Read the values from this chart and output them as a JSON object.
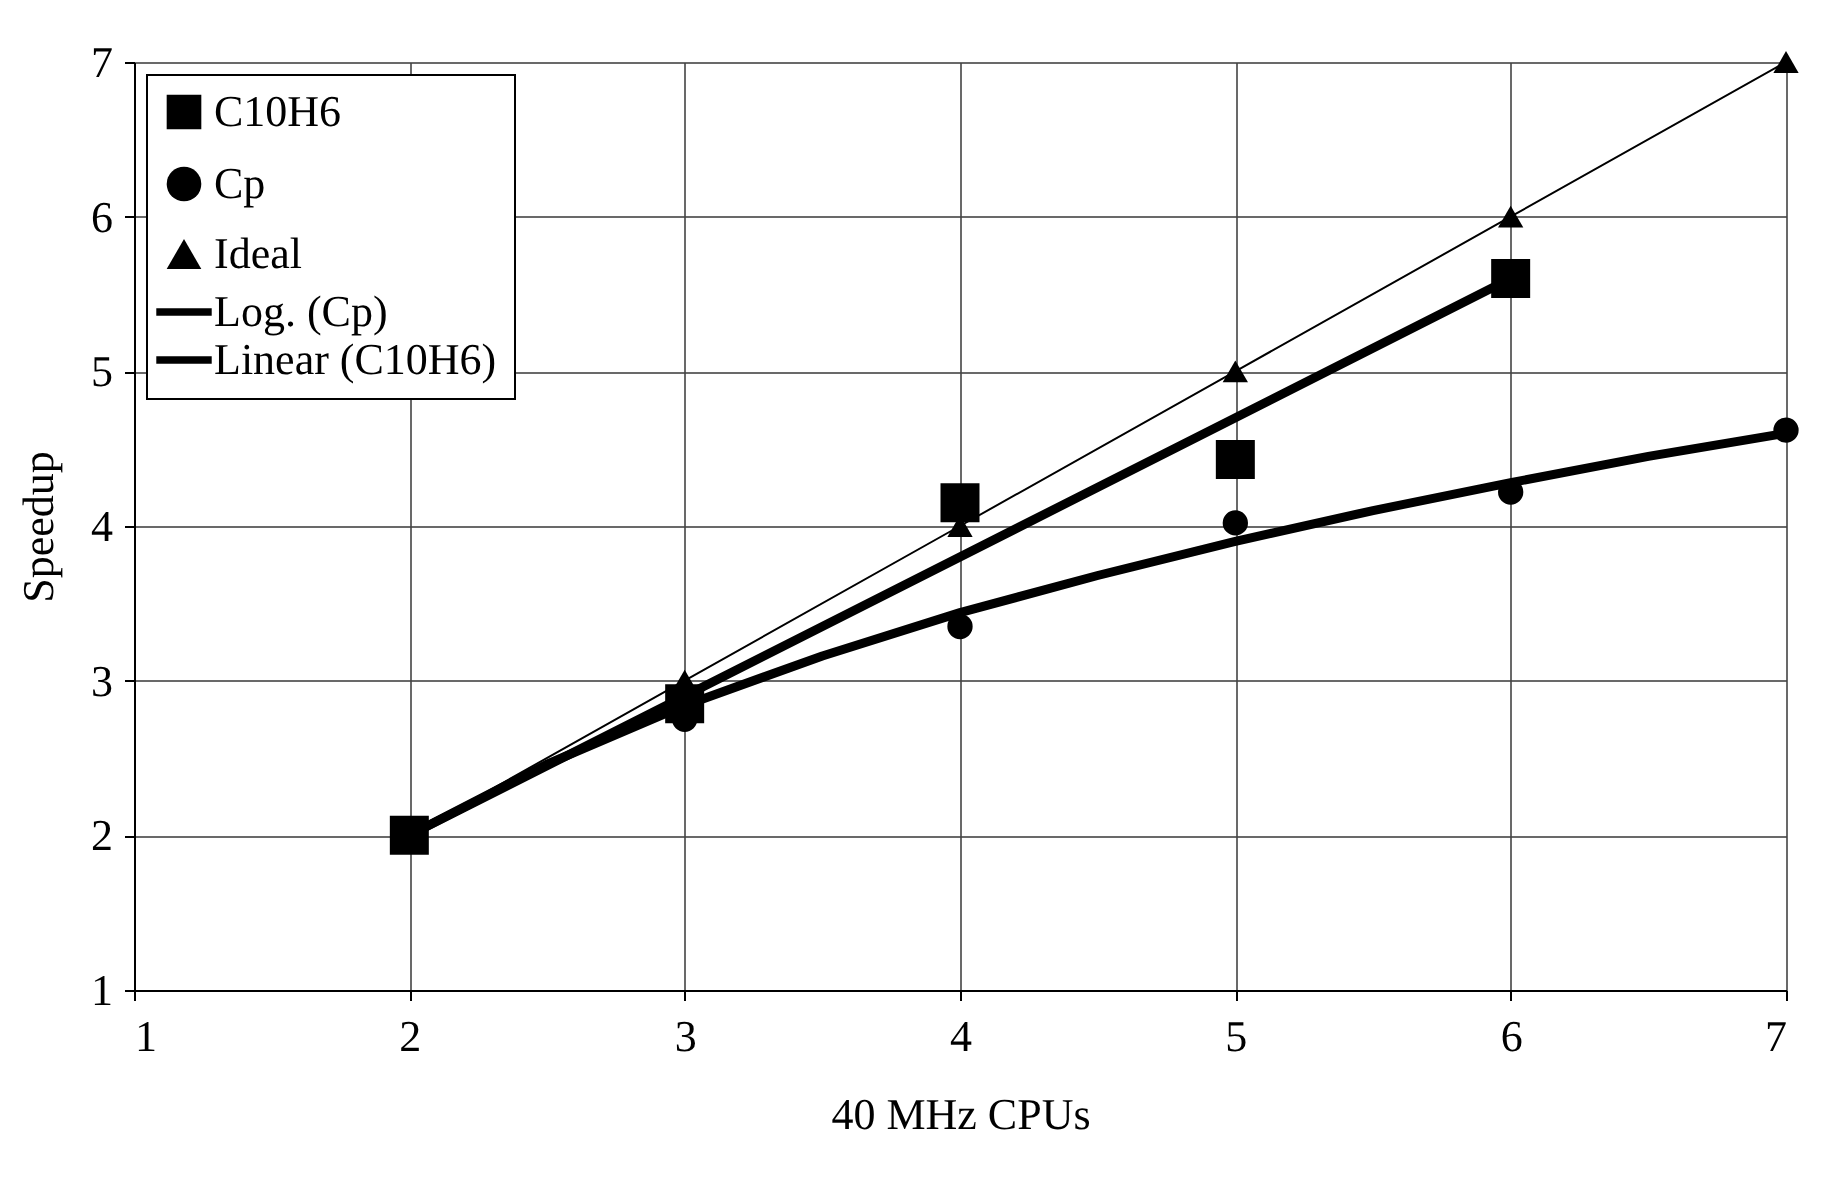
{
  "chart_data": {
    "type": "scatter",
    "xlabel": "40 MHz CPUs",
    "ylabel": "Speedup",
    "xlim": [
      1,
      7
    ],
    "xticks": [
      1,
      2,
      3,
      4,
      5,
      6,
      7
    ],
    "ylim": [
      1,
      7
    ],
    "yticks": [
      1,
      2,
      3,
      4,
      5,
      6,
      7
    ],
    "grid": true,
    "legend": "top left",
    "series": [
      {
        "name": "C10H6",
        "marker": "square",
        "color": "#000000",
        "x": [
          2,
          3,
          4,
          5,
          6
        ],
        "values": [
          2.0,
          2.85,
          4.15,
          4.43,
          5.6
        ]
      },
      {
        "name": "Cp",
        "marker": "circle",
        "color": "#000000",
        "x": [
          3,
          4,
          5,
          6,
          7
        ],
        "values": [
          2.75,
          3.35,
          4.02,
          4.22,
          4.62
        ]
      },
      {
        "name": "Ideal",
        "type": "line",
        "marker": "triangle",
        "color": "#000000",
        "x": [
          2,
          3,
          4,
          5,
          6,
          7
        ],
        "values": [
          2,
          3,
          4,
          5,
          6,
          7
        ]
      },
      {
        "name": "Log. (Cp)",
        "type": "line",
        "marker": "none",
        "color": "#000000",
        "x": [
          2,
          2.5,
          3,
          3.5,
          4,
          4.5,
          5,
          5.5,
          6,
          6.5,
          7
        ],
        "values": [
          2.0,
          2.46,
          2.84,
          3.16,
          3.44,
          3.68,
          3.9,
          4.1,
          4.28,
          4.45,
          4.6
        ]
      },
      {
        "name": "Linear (C10H6)",
        "type": "line",
        "marker": "none",
        "color": "#000000",
        "x": [
          2,
          6
        ],
        "values": [
          2.0,
          5.6
        ]
      }
    ]
  }
}
